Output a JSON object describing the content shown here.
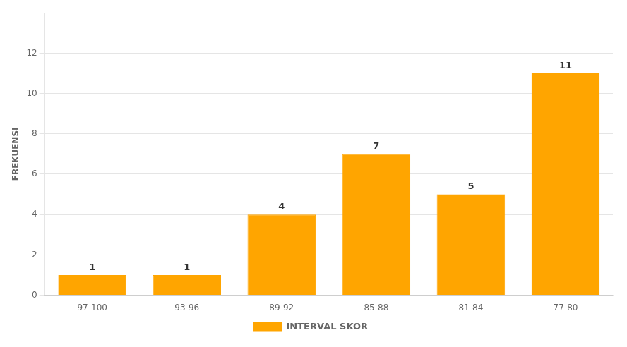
{
  "chart_data": {
    "type": "bar",
    "ylabel": "FREKUENSI",
    "categories": [
      "97-100",
      "93-96",
      "89-92",
      "85-88",
      "81-84",
      "77-80"
    ],
    "series": [
      {
        "name": "INTERVAL SKOR",
        "color": "#FFA500",
        "values": [
          1,
          1,
          4,
          7,
          5,
          11
        ]
      }
    ],
    "ylim": [
      0,
      14
    ],
    "yticks": [
      0,
      2,
      4,
      6,
      8,
      10,
      12
    ],
    "grid": true,
    "legend": "bottom",
    "data_labels": true
  }
}
